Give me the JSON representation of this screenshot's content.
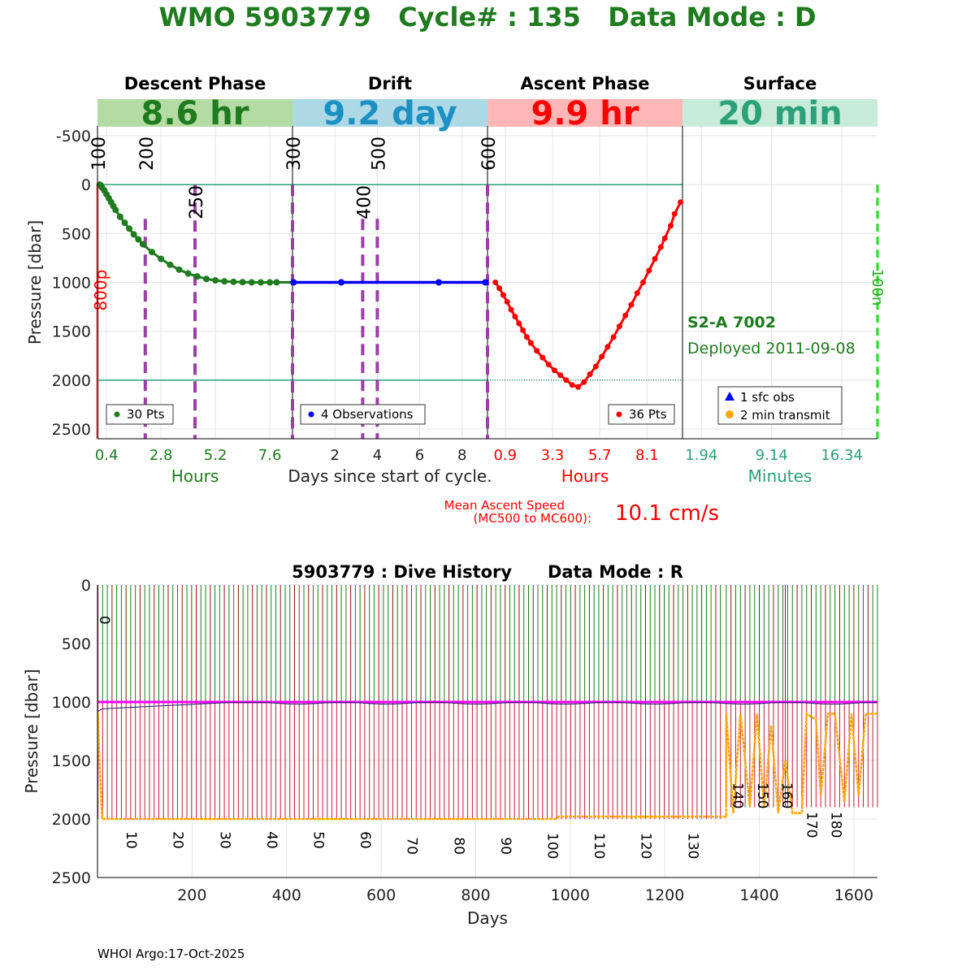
{
  "header": {
    "title": "WMO 5903779   Cycle# : 135   Data Mode : D"
  },
  "footer": {
    "credit": "WHOI Argo:17-Oct-2025"
  },
  "colors": {
    "title_green": "#1e7b1e",
    "descent": "#1e7b1e",
    "drift": "#0000ff",
    "ascent": "#ff0000",
    "surface": "#2ca07a",
    "mission_marker": "#9b3ea8",
    "dive_history_line": "#ff00ff",
    "transmit": "#ffa500",
    "drift_box": "#add8e6",
    "descent_box": "#b5dba4",
    "ascent_box": "#ffb6b6",
    "surface_box": "#c8ead9"
  },
  "chart_data": [
    {
      "type": "line",
      "title": "",
      "ylabel": "Pressure [dbar]",
      "ylim": [
        -600,
        2600
      ],
      "yticks": [
        "-500",
        "0",
        "500",
        "1000",
        "1500",
        "2000",
        "2500"
      ],
      "ytick_values": [
        -500,
        0,
        500,
        1000,
        1500,
        2000,
        2500
      ],
      "reference_lines": [
        0,
        2000
      ],
      "xlabel_center": "Days since start of cycle.",
      "phases": [
        {
          "name": "Descent Phase",
          "duration": "8.6 hr",
          "axis_label": "Hours",
          "tick_labels": [
            "0.4",
            "2.8",
            "5.2",
            "7.6"
          ],
          "tick_values": [
            0.4,
            2.8,
            5.2,
            7.6
          ],
          "xlim": [
            0,
            8.6
          ],
          "legend": "30 Pts",
          "points_hours": [
            0.1,
            0.15,
            0.2,
            0.3,
            0.4,
            0.5,
            0.6,
            0.7,
            0.8,
            1.0,
            1.2,
            1.4,
            1.6,
            1.8,
            2.0,
            2.4,
            2.8,
            3.2,
            3.6,
            4.0,
            4.4,
            4.8,
            5.2,
            5.6,
            6.0,
            6.4,
            6.8,
            7.2,
            7.6,
            7.9
          ],
          "points_pressure": [
            0,
            10,
            30,
            60,
            100,
            140,
            180,
            220,
            260,
            330,
            390,
            450,
            510,
            560,
            610,
            690,
            760,
            820,
            870,
            910,
            940,
            965,
            980,
            990,
            995,
            998,
            1000,
            1000,
            1000,
            1000
          ]
        },
        {
          "name": "Drift",
          "duration": "9.2 day",
          "axis_label": "",
          "tick_labels": [
            "2",
            "4",
            "6",
            "8"
          ],
          "tick_values": [
            2,
            4,
            6,
            8
          ],
          "xlim": [
            0,
            9.2
          ],
          "legend": "4 Observations",
          "points_days": [
            0.05,
            2.3,
            6.9,
            9.1
          ],
          "points_pressure": [
            1000,
            1000,
            1000,
            1000
          ]
        },
        {
          "name": "Ascent Phase",
          "duration": "9.9 hr",
          "axis_label": "Hours",
          "tick_labels": [
            "0.9",
            "3.3",
            "5.7",
            "8.1"
          ],
          "tick_values": [
            0.9,
            3.3,
            5.7,
            8.1
          ],
          "xlim": [
            0,
            9.9
          ],
          "legend": "36 Pts",
          "points_hours": [
            0.4,
            0.6,
            0.8,
            1.0,
            1.2,
            1.4,
            1.6,
            1.8,
            2.0,
            2.2,
            2.5,
            2.8,
            3.1,
            3.4,
            3.7,
            4.0,
            4.3,
            4.6,
            4.9,
            5.2,
            5.5,
            5.8,
            6.1,
            6.4,
            6.7,
            7.0,
            7.3,
            7.6,
            7.9,
            8.2,
            8.5,
            8.8,
            9.0,
            9.3,
            9.5,
            9.8
          ],
          "points_pressure": [
            1000,
            1060,
            1130,
            1200,
            1280,
            1350,
            1420,
            1490,
            1560,
            1620,
            1700,
            1770,
            1840,
            1900,
            1950,
            2000,
            2050,
            2070,
            2020,
            1940,
            1860,
            1760,
            1660,
            1560,
            1450,
            1340,
            1230,
            1110,
            1000,
            880,
            760,
            640,
            550,
            420,
            300,
            180
          ]
        },
        {
          "name": "Surface",
          "duration": "20 min",
          "axis_label": "Minutes",
          "tick_labels": [
            "1.94",
            "9.14",
            "16.34"
          ],
          "tick_values": [
            1.94,
            9.14,
            16.34
          ],
          "xlim": [
            0,
            20
          ]
        }
      ],
      "mission_markers": [
        {
          "label": "100",
          "x": 0.0
        },
        {
          "label": "200",
          "x": 0.245
        },
        {
          "label": "250",
          "x": 0.5
        },
        {
          "label": "300",
          "x": 1.0
        },
        {
          "label": "400",
          "x": 1.36
        },
        {
          "label": "500",
          "x": 1.435
        },
        {
          "label": "600",
          "x": 2.0
        }
      ],
      "annotations": {
        "left_vertical": "800p",
        "right_vertical": "100n",
        "sensor": "S2-A 7002",
        "deployed": "Deployed 2011-09-08"
      },
      "surface_legend": [
        "1 sfc obs",
        "2 min transmit"
      ],
      "ascent_speed": {
        "label_line1": "Mean Ascent Speed",
        "label_line2": "(MC500 to MC600):",
        "value": "10.1 cm/s"
      }
    },
    {
      "type": "line",
      "title": "5903779 : Dive History      Data Mode : R",
      "xlabel": "Days",
      "ylabel": "Pressure [dbar]",
      "xlim": [
        0,
        1650
      ],
      "ylim": [
        0,
        2500
      ],
      "xticks": [
        "200",
        "400",
        "600",
        "800",
        "1000",
        "1200",
        "1400",
        "1600"
      ],
      "xtick_values": [
        200,
        400,
        600,
        800,
        1000,
        1200,
        1400,
        1600
      ],
      "yticks": [
        "0",
        "500",
        "1000",
        "1500",
        "2000",
        "2500"
      ],
      "ytick_values": [
        0,
        500,
        1000,
        1500,
        2000,
        2500
      ],
      "cycle_labels": [
        {
          "label": "0",
          "day": 5,
          "pressure": 300
        },
        {
          "label": "10",
          "day": 62,
          "pressure": 2180
        },
        {
          "label": "20",
          "day": 161,
          "pressure": 2180
        },
        {
          "label": "30",
          "day": 260,
          "pressure": 2180
        },
        {
          "label": "40",
          "day": 359,
          "pressure": 2180
        },
        {
          "label": "50",
          "day": 458,
          "pressure": 2180
        },
        {
          "label": "60",
          "day": 557,
          "pressure": 2180
        },
        {
          "label": "70",
          "day": 656,
          "pressure": 2230
        },
        {
          "label": "80",
          "day": 755,
          "pressure": 2230
        },
        {
          "label": "90",
          "day": 854,
          "pressure": 2230
        },
        {
          "label": "100",
          "day": 953,
          "pressure": 2230
        },
        {
          "label": "110",
          "day": 1052,
          "pressure": 2230
        },
        {
          "label": "120",
          "day": 1151,
          "pressure": 2230
        },
        {
          "label": "130",
          "day": 1250,
          "pressure": 2230
        },
        {
          "label": "140",
          "day": 1345,
          "pressure": 1800
        },
        {
          "label": "150",
          "day": 1397,
          "pressure": 1800
        },
        {
          "label": "160",
          "day": 1449,
          "pressure": 1800
        },
        {
          "label": "170",
          "day": 1501,
          "pressure": 2050
        },
        {
          "label": "180",
          "day": 1553,
          "pressure": 2050
        }
      ],
      "cycle_interval_days": 9.9,
      "n_regular_cycles": 134,
      "late_cycle_days": [
        1330,
        1340,
        1350,
        1360,
        1370,
        1380,
        1390,
        1400,
        1410,
        1420,
        1430,
        1440,
        1450,
        1455,
        1460,
        1470,
        1480,
        1490,
        1500,
        1510,
        1520,
        1530,
        1540,
        1550,
        1560,
        1570,
        1580,
        1590,
        1600,
        1610,
        1620,
        1630,
        1640,
        1650
      ],
      "park_pressure": 1000,
      "profile_pressure": 2000
    }
  ]
}
